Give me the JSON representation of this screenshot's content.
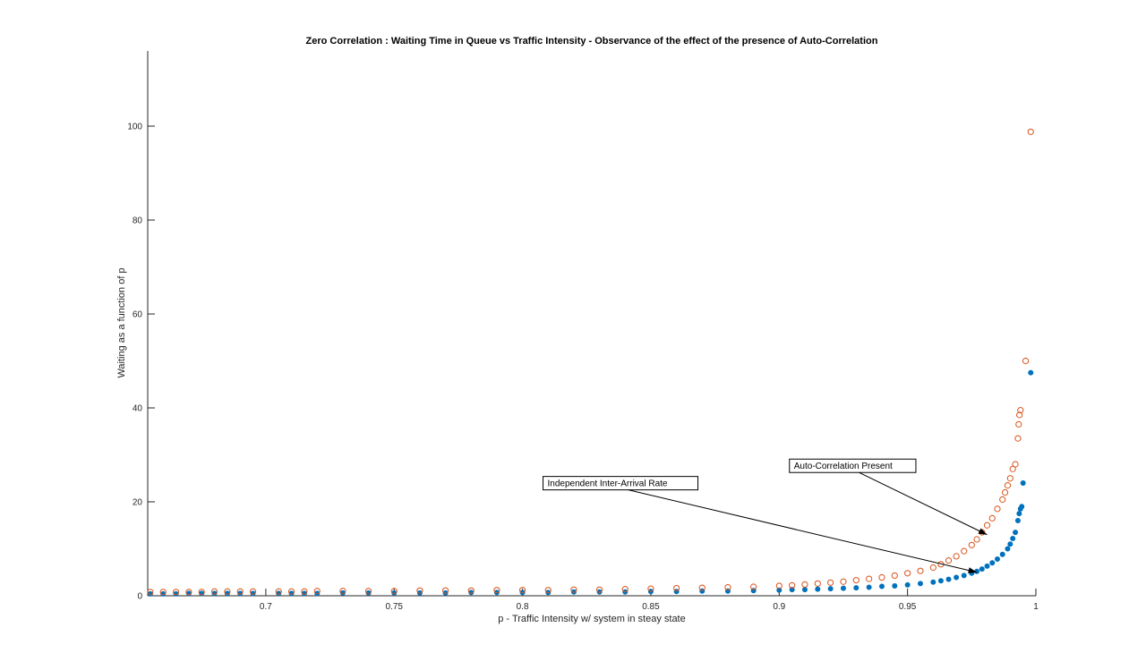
{
  "chart_data": {
    "type": "scatter",
    "title": "Zero Correlation : Waiting Time in Queue vs Traffic Intensity - Observance of the effect of the presence of Auto-Correlation",
    "xlabel": "p - Traffic Intensity w/ system in steay state",
    "ylabel": "Waiting as a function of p",
    "xlim": [
      0.654,
      1.0
    ],
    "ylim": [
      0,
      116
    ],
    "xticks": [
      0.7,
      0.75,
      0.8,
      0.85,
      0.9,
      0.95,
      1
    ],
    "xtick_labels": [
      "0.7",
      "0.75",
      "0.8",
      "0.85",
      "0.9",
      "0.95",
      "1"
    ],
    "yticks": [
      0,
      20,
      40,
      60,
      80,
      100
    ],
    "ytick_labels": [
      "0",
      "20",
      "40",
      "60",
      "80",
      "100"
    ],
    "grid": false,
    "box": false,
    "series": [
      {
        "marker": "filled-circle",
        "color": "#0072BD",
        "x": [
          0.655,
          0.66,
          0.665,
          0.67,
          0.675,
          0.68,
          0.685,
          0.69,
          0.695,
          0.705,
          0.71,
          0.715,
          0.72,
          0.73,
          0.74,
          0.75,
          0.76,
          0.77,
          0.78,
          0.79,
          0.8,
          0.81,
          0.82,
          0.83,
          0.84,
          0.85,
          0.86,
          0.87,
          0.88,
          0.89,
          0.9,
          0.905,
          0.91,
          0.915,
          0.92,
          0.925,
          0.93,
          0.935,
          0.94,
          0.945,
          0.95,
          0.955,
          0.96,
          0.963,
          0.966,
          0.969,
          0.972,
          0.975,
          0.977,
          0.979,
          0.981,
          0.983,
          0.985,
          0.987,
          0.989,
          0.99,
          0.991,
          0.992,
          0.993,
          0.9935,
          0.994,
          0.9945,
          0.995,
          0.998
        ],
        "y": [
          0.4,
          0.4,
          0.4,
          0.5,
          0.5,
          0.5,
          0.5,
          0.5,
          0.5,
          0.5,
          0.5,
          0.5,
          0.5,
          0.6,
          0.6,
          0.6,
          0.6,
          0.6,
          0.7,
          0.7,
          0.7,
          0.7,
          0.8,
          0.8,
          0.8,
          0.9,
          0.9,
          1.0,
          1.0,
          1.1,
          1.2,
          1.3,
          1.3,
          1.4,
          1.5,
          1.6,
          1.7,
          1.8,
          2.0,
          2.1,
          2.3,
          2.6,
          2.9,
          3.2,
          3.5,
          3.9,
          4.3,
          4.8,
          5.2,
          5.7,
          6.3,
          7.0,
          7.8,
          8.8,
          10.0,
          11.0,
          12.2,
          13.5,
          16.0,
          17.5,
          18.5,
          19.0,
          24.0,
          47.5
        ]
      },
      {
        "marker": "open-circle",
        "color": "#D95319",
        "x": [
          0.655,
          0.66,
          0.665,
          0.67,
          0.675,
          0.68,
          0.685,
          0.69,
          0.695,
          0.705,
          0.71,
          0.715,
          0.72,
          0.73,
          0.74,
          0.75,
          0.76,
          0.77,
          0.78,
          0.79,
          0.8,
          0.81,
          0.82,
          0.83,
          0.84,
          0.85,
          0.86,
          0.87,
          0.88,
          0.89,
          0.9,
          0.905,
          0.91,
          0.915,
          0.92,
          0.925,
          0.93,
          0.935,
          0.94,
          0.945,
          0.95,
          0.955,
          0.96,
          0.963,
          0.966,
          0.969,
          0.972,
          0.975,
          0.977,
          0.979,
          0.981,
          0.983,
          0.985,
          0.987,
          0.988,
          0.989,
          0.99,
          0.991,
          0.992,
          0.993,
          0.9933,
          0.9936,
          0.994,
          0.996,
          0.998
        ],
        "y": [
          0.8,
          0.8,
          0.8,
          0.8,
          0.8,
          0.9,
          0.9,
          0.9,
          0.9,
          0.9,
          0.9,
          0.9,
          1.0,
          1.0,
          1.0,
          1.0,
          1.1,
          1.1,
          1.1,
          1.2,
          1.2,
          1.2,
          1.3,
          1.3,
          1.4,
          1.5,
          1.6,
          1.7,
          1.8,
          1.9,
          2.1,
          2.2,
          2.4,
          2.6,
          2.8,
          3.0,
          3.3,
          3.6,
          3.9,
          4.3,
          4.8,
          5.3,
          6.0,
          6.7,
          7.5,
          8.4,
          9.5,
          10.8,
          12.0,
          13.5,
          15.0,
          16.5,
          18.5,
          20.5,
          22.0,
          23.5,
          25.0,
          27.0,
          28.0,
          33.5,
          36.5,
          38.5,
          39.5,
          50.0,
          98.8
        ]
      }
    ],
    "annotations": [
      {
        "text": "Independent Inter-Arrival Rate",
        "box_x": 0.808,
        "box_y": 25.4,
        "target_x": 0.977,
        "target_y": 5.0
      },
      {
        "text": "Auto-Correlation Present",
        "box_x": 0.904,
        "box_y": 29.1,
        "target_x": 0.981,
        "target_y": 13.0
      }
    ]
  }
}
